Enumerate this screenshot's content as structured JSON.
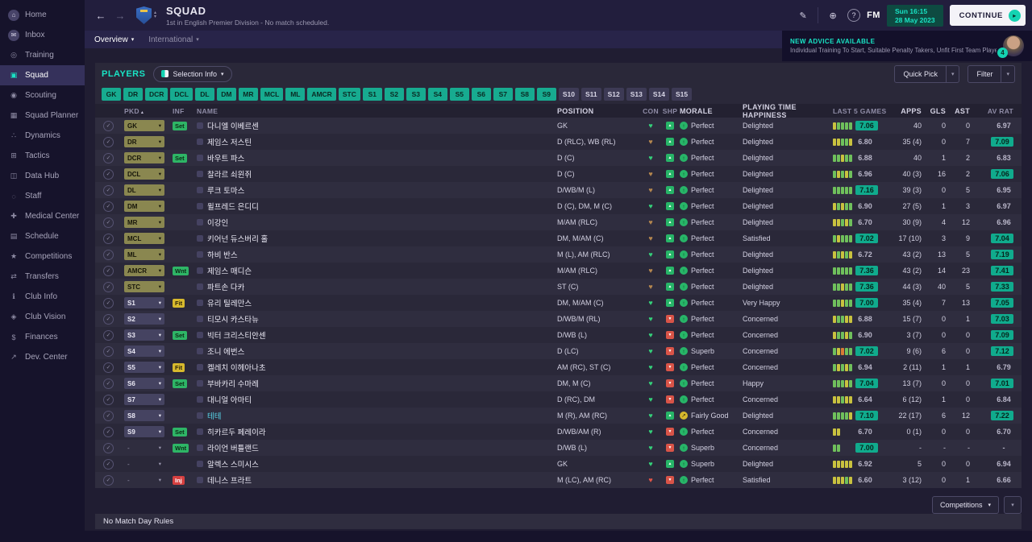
{
  "sidebar": {
    "active_index": 3,
    "items": [
      {
        "id": "home",
        "label": "Home"
      },
      {
        "id": "inbox",
        "label": "Inbox"
      },
      {
        "id": "training",
        "label": "Training"
      },
      {
        "id": "squad",
        "label": "Squad"
      },
      {
        "id": "scouting",
        "label": "Scouting"
      },
      {
        "id": "squad-planner",
        "label": "Squad Planner"
      },
      {
        "id": "dynamics",
        "label": "Dynamics"
      },
      {
        "id": "tactics",
        "label": "Tactics"
      },
      {
        "id": "data-hub",
        "label": "Data Hub"
      },
      {
        "id": "staff",
        "label": "Staff"
      },
      {
        "id": "medical-center",
        "label": "Medical Center"
      },
      {
        "id": "schedule",
        "label": "Schedule"
      },
      {
        "id": "competitions",
        "label": "Competitions"
      },
      {
        "id": "transfers",
        "label": "Transfers"
      },
      {
        "id": "club-info",
        "label": "Club Info"
      },
      {
        "id": "club-vision",
        "label": "Club Vision"
      },
      {
        "id": "finances",
        "label": "Finances"
      },
      {
        "id": "dev-center",
        "label": "Dev. Center"
      }
    ]
  },
  "header": {
    "title": "SQUAD",
    "subtitle": "1st in English Premier Division - No match scheduled.",
    "fm_logo": "FM",
    "date_line1": "Sun 16:15",
    "date_line2": "28 May 2023",
    "continue_label": "CONTINUE"
  },
  "tabs": [
    {
      "label": "Overview"
    },
    {
      "label": "International"
    }
  ],
  "advice": {
    "title": "NEW ADVICE AVAILABLE",
    "body": "Individual Training To Start, Suitable Penalty Takers, Unfit First Team Players",
    "badge": "4"
  },
  "players_bar": {
    "title": "PLAYERS",
    "selection_info": "Selection Info",
    "quick_pick": "Quick Pick",
    "filter": "Filter"
  },
  "position_filters": {
    "selected": [
      "GK",
      "DR",
      "DCR",
      "DCL",
      "DL",
      "DM",
      "MR",
      "MCL",
      "ML",
      "AMCR",
      "STC",
      "S1",
      "S2",
      "S3",
      "S4",
      "S5",
      "S6",
      "S7",
      "S8",
      "S9"
    ],
    "unselected": [
      "S10",
      "S11",
      "S12",
      "S13",
      "S14",
      "S15"
    ]
  },
  "table": {
    "columns": [
      "PKD",
      "INF",
      "NAME",
      "POSITION",
      "CON",
      "SHP",
      "MORALE",
      "PLAYING TIME HAPPINESS",
      "LAST 5 GAMES",
      "APPS",
      "GLS",
      "AST",
      "AV RAT"
    ],
    "rows": [
      {
        "pkd": "GK",
        "sel": "starter",
        "inf": {
          "label": "Set",
          "type": "ok"
        },
        "name": "다니엘 이베르센",
        "loan": false,
        "position": "GK",
        "con": "green",
        "shp": "up",
        "morale": {
          "level": "good",
          "text": "Perfect"
        },
        "happiness": "Delighted",
        "last5": {
          "bars": [
            "y",
            "g",
            "g",
            "g",
            "g"
          ],
          "rating": "7.06",
          "badge": true
        },
        "apps": "40",
        "gls": "0",
        "ast": "0",
        "avrat": "6.97",
        "avrat_badge": false
      },
      {
        "pkd": "DR",
        "sel": "starter",
        "inf": null,
        "name": "제임스 저스틴",
        "loan": false,
        "position": "D (RLC), WB (RL)",
        "con": "bronze",
        "shp": "up",
        "morale": {
          "level": "good",
          "text": "Perfect"
        },
        "happiness": "Delighted",
        "last5": {
          "bars": [
            "y",
            "y",
            "g",
            "g",
            "y"
          ],
          "rating": "6.80",
          "badge": false
        },
        "apps": "35 (4)",
        "gls": "0",
        "ast": "7",
        "avrat": "7.09",
        "avrat_badge": true
      },
      {
        "pkd": "DCR",
        "sel": "starter",
        "inf": {
          "label": "Set",
          "type": "ok"
        },
        "name": "바우트 파스",
        "loan": false,
        "position": "D (C)",
        "con": "green",
        "shp": "up",
        "morale": {
          "level": "good",
          "text": "Perfect"
        },
        "happiness": "Delighted",
        "last5": {
          "bars": [
            "g",
            "g",
            "y",
            "g",
            "g"
          ],
          "rating": "6.88",
          "badge": false
        },
        "apps": "40",
        "gls": "1",
        "ast": "2",
        "avrat": "6.83",
        "avrat_badge": false
      },
      {
        "pkd": "DCL",
        "sel": "starter",
        "inf": null,
        "name": "찰라르 쇠윈쥐",
        "loan": false,
        "position": "D (C)",
        "con": "bronze",
        "shp": "up",
        "morale": {
          "level": "good",
          "text": "Perfect"
        },
        "happiness": "Delighted",
        "last5": {
          "bars": [
            "g",
            "y",
            "g",
            "y",
            "g"
          ],
          "rating": "6.96",
          "badge": false
        },
        "apps": "40 (3)",
        "gls": "16",
        "ast": "2",
        "avrat": "7.06",
        "avrat_badge": true
      },
      {
        "pkd": "DL",
        "sel": "starter",
        "inf": null,
        "name": "루크 토마스",
        "loan": false,
        "position": "D/WB/M (L)",
        "con": "bronze",
        "shp": "up",
        "morale": {
          "level": "good",
          "text": "Perfect"
        },
        "happiness": "Delighted",
        "last5": {
          "bars": [
            "g",
            "g",
            "g",
            "g",
            "g"
          ],
          "rating": "7.16",
          "badge": true
        },
        "apps": "39 (3)",
        "gls": "0",
        "ast": "5",
        "avrat": "6.95",
        "avrat_badge": false
      },
      {
        "pkd": "DM",
        "sel": "starter",
        "inf": null,
        "name": "윌프레드 은디디",
        "loan": false,
        "position": "D (C), DM, M (C)",
        "con": "green",
        "shp": "up",
        "morale": {
          "level": "good",
          "text": "Perfect"
        },
        "happiness": "Delighted",
        "last5": {
          "bars": [
            "y",
            "g",
            "y",
            "g",
            "g"
          ],
          "rating": "6.90",
          "badge": false
        },
        "apps": "27 (5)",
        "gls": "1",
        "ast": "3",
        "avrat": "6.97",
        "avrat_badge": false
      },
      {
        "pkd": "MR",
        "sel": "starter",
        "inf": null,
        "name": "이강인",
        "loan": false,
        "position": "M/AM (RLC)",
        "con": "bronze",
        "shp": "up",
        "morale": {
          "level": "good",
          "text": "Perfect"
        },
        "happiness": "Delighted",
        "last5": {
          "bars": [
            "y",
            "y",
            "g",
            "y",
            "g"
          ],
          "rating": "6.70",
          "badge": false
        },
        "apps": "30 (9)",
        "gls": "4",
        "ast": "12",
        "avrat": "6.96",
        "avrat_badge": false
      },
      {
        "pkd": "MCL",
        "sel": "starter",
        "inf": null,
        "name": "키어넌 듀스버리 홀",
        "loan": false,
        "position": "DM, M/AM (C)",
        "con": "bronze",
        "shp": "up",
        "morale": {
          "level": "good",
          "text": "Perfect"
        },
        "happiness": "Satisfied",
        "last5": {
          "bars": [
            "g",
            "y",
            "g",
            "g",
            "g"
          ],
          "rating": "7.02",
          "badge": true
        },
        "apps": "17 (10)",
        "gls": "3",
        "ast": "9",
        "avrat": "7.04",
        "avrat_badge": true
      },
      {
        "pkd": "ML",
        "sel": "starter",
        "inf": null,
        "name": "하비 반스",
        "loan": false,
        "position": "M (L), AM (RLC)",
        "con": "green",
        "shp": "up",
        "morale": {
          "level": "good",
          "text": "Perfect"
        },
        "happiness": "Delighted",
        "last5": {
          "bars": [
            "y",
            "g",
            "y",
            "g",
            "y"
          ],
          "rating": "6.72",
          "badge": false
        },
        "apps": "43 (2)",
        "gls": "13",
        "ast": "5",
        "avrat": "7.19",
        "avrat_badge": true
      },
      {
        "pkd": "AMCR",
        "sel": "starter",
        "inf": {
          "label": "Wnt",
          "type": "ok"
        },
        "name": "제임스 매디슨",
        "loan": false,
        "position": "M/AM (RLC)",
        "con": "bronze",
        "shp": "up",
        "morale": {
          "level": "good",
          "text": "Perfect"
        },
        "happiness": "Delighted",
        "last5": {
          "bars": [
            "g",
            "g",
            "g",
            "g",
            "g"
          ],
          "rating": "7.36",
          "badge": true
        },
        "apps": "43 (2)",
        "gls": "14",
        "ast": "23",
        "avrat": "7.41",
        "avrat_badge": true
      },
      {
        "pkd": "STC",
        "sel": "starter",
        "inf": null,
        "name": "파트손 다카",
        "loan": false,
        "position": "ST (C)",
        "con": "bronze",
        "shp": "up",
        "morale": {
          "level": "good",
          "text": "Perfect"
        },
        "happiness": "Delighted",
        "last5": {
          "bars": [
            "g",
            "g",
            "y",
            "g",
            "g"
          ],
          "rating": "7.36",
          "badge": true
        },
        "apps": "44 (3)",
        "gls": "40",
        "ast": "5",
        "avrat": "7.33",
        "avrat_badge": true
      },
      {
        "pkd": "S1",
        "sel": "sub",
        "inf": {
          "label": "Fit",
          "type": "warn"
        },
        "name": "유리 틸레만스",
        "loan": false,
        "position": "DM, M/AM (C)",
        "con": "green",
        "shp": "up",
        "morale": {
          "level": "good",
          "text": "Perfect"
        },
        "happiness": "Very Happy",
        "last5": {
          "bars": [
            "g",
            "g",
            "y",
            "g",
            "g"
          ],
          "rating": "7.00",
          "badge": true
        },
        "apps": "35 (4)",
        "gls": "7",
        "ast": "13",
        "avrat": "7.05",
        "avrat_badge": true
      },
      {
        "pkd": "S2",
        "sel": "sub",
        "inf": null,
        "name": "티모시 카스타뉴",
        "loan": false,
        "position": "D/WB/M (RL)",
        "con": "green",
        "shp": "down",
        "morale": {
          "level": "good",
          "text": "Perfect"
        },
        "happiness": "Concerned",
        "last5": {
          "bars": [
            "y",
            "g",
            "g",
            "y",
            "y"
          ],
          "rating": "6.88",
          "badge": false
        },
        "apps": "15 (7)",
        "gls": "0",
        "ast": "1",
        "avrat": "7.03",
        "avrat_badge": true
      },
      {
        "pkd": "S3",
        "sel": "sub",
        "inf": {
          "label": "Set",
          "type": "ok"
        },
        "name": "빅터 크리스티안센",
        "loan": false,
        "position": "D/WB (L)",
        "con": "green",
        "shp": "down",
        "morale": {
          "level": "good",
          "text": "Perfect"
        },
        "happiness": "Concerned",
        "last5": {
          "bars": [
            "y",
            "g",
            "g",
            "y",
            "g"
          ],
          "rating": "6.90",
          "badge": false
        },
        "apps": "3 (7)",
        "gls": "0",
        "ast": "0",
        "avrat": "7.09",
        "avrat_badge": true
      },
      {
        "pkd": "S4",
        "sel": "sub",
        "inf": null,
        "name": "조니 에번스",
        "loan": false,
        "position": "D (LC)",
        "con": "green",
        "shp": "down",
        "morale": {
          "level": "good",
          "text": "Superb"
        },
        "happiness": "Concerned",
        "last5": {
          "bars": [
            "g",
            "y",
            "o",
            "g",
            "g"
          ],
          "rating": "7.02",
          "badge": true
        },
        "apps": "9 (6)",
        "gls": "6",
        "ast": "0",
        "avrat": "7.12",
        "avrat_badge": true
      },
      {
        "pkd": "S5",
        "sel": "sub",
        "inf": {
          "label": "Fit",
          "type": "warn"
        },
        "name": "켈레치 이헤아나초",
        "loan": false,
        "position": "AM (RC), ST (C)",
        "con": "green",
        "shp": "down",
        "morale": {
          "level": "good",
          "text": "Perfect"
        },
        "happiness": "Concerned",
        "last5": {
          "bars": [
            "g",
            "y",
            "g",
            "y",
            "g"
          ],
          "rating": "6.94",
          "badge": false
        },
        "apps": "2 (11)",
        "gls": "1",
        "ast": "1",
        "avrat": "6.79",
        "avrat_badge": false
      },
      {
        "pkd": "S6",
        "sel": "sub",
        "inf": {
          "label": "Set",
          "type": "ok"
        },
        "name": "부바카리 수마레",
        "loan": false,
        "position": "DM, M (C)",
        "con": "green",
        "shp": "down",
        "morale": {
          "level": "good",
          "text": "Perfect"
        },
        "happiness": "Happy",
        "last5": {
          "bars": [
            "g",
            "g",
            "g",
            "y",
            "g"
          ],
          "rating": "7.04",
          "badge": true
        },
        "apps": "13 (7)",
        "gls": "0",
        "ast": "0",
        "avrat": "7.01",
        "avrat_badge": true
      },
      {
        "pkd": "S7",
        "sel": "sub",
        "inf": null,
        "name": "대니얼 아마티",
        "loan": false,
        "position": "D (RC), DM",
        "con": "green",
        "shp": "down",
        "morale": {
          "level": "good",
          "text": "Perfect"
        },
        "happiness": "Concerned",
        "last5": {
          "bars": [
            "y",
            "y",
            "g",
            "y",
            "y"
          ],
          "rating": "6.64",
          "badge": false
        },
        "apps": "6 (12)",
        "gls": "1",
        "ast": "0",
        "avrat": "6.84",
        "avrat_badge": false
      },
      {
        "pkd": "S8",
        "sel": "sub",
        "inf": null,
        "name": "테테",
        "loan": true,
        "position": "M (R), AM (RC)",
        "con": "green",
        "shp": "up",
        "morale": {
          "level": "mid",
          "text": "Fairly Good"
        },
        "happiness": "Delighted",
        "last5": {
          "bars": [
            "g",
            "g",
            "g",
            "g",
            "y"
          ],
          "rating": "7.10",
          "badge": true
        },
        "apps": "22 (17)",
        "gls": "6",
        "ast": "12",
        "avrat": "7.22",
        "avrat_badge": true
      },
      {
        "pkd": "S9",
        "sel": "sub",
        "inf": {
          "label": "Set",
          "type": "ok"
        },
        "name": "히카르두 페레이라",
        "loan": false,
        "position": "D/WB/AM (R)",
        "con": "green",
        "shp": "down",
        "morale": {
          "level": "good",
          "text": "Perfect"
        },
        "happiness": "Concerned",
        "last5": {
          "bars": [
            "y",
            "y",
            "e",
            "e",
            "e"
          ],
          "rating": "6.70",
          "badge": false
        },
        "apps": "0 (1)",
        "gls": "0",
        "ast": "0",
        "avrat": "6.70",
        "avrat_badge": false
      },
      {
        "pkd": "-",
        "sel": "none",
        "inf": {
          "label": "Wnt",
          "type": "ok"
        },
        "name": "라이언 버틀랜드",
        "loan": false,
        "position": "D/WB (L)",
        "con": "green",
        "shp": "down",
        "morale": {
          "level": "good",
          "text": "Superb"
        },
        "happiness": "Concerned",
        "last5": {
          "bars": [
            "g",
            "g",
            "e",
            "e",
            "e"
          ],
          "rating": "7.00",
          "badge": true
        },
        "apps": "-",
        "gls": "-",
        "ast": "-",
        "avrat": "-",
        "avrat_badge": false
      },
      {
        "pkd": "-",
        "sel": "none",
        "inf": null,
        "name": "알렉스 스미시스",
        "loan": false,
        "position": "GK",
        "con": "green",
        "shp": "up",
        "morale": {
          "level": "good",
          "text": "Superb"
        },
        "happiness": "Delighted",
        "last5": {
          "bars": [
            "y",
            "y",
            "y",
            "y",
            "y"
          ],
          "rating": "6.92",
          "badge": false
        },
        "apps": "5",
        "gls": "0",
        "ast": "0",
        "avrat": "6.94",
        "avrat_badge": false
      },
      {
        "pkd": "-",
        "sel": "none",
        "inf": {
          "label": "Inj",
          "type": "bad"
        },
        "name": "데니스 프라트",
        "loan": false,
        "position": "M (LC), AM (RC)",
        "con": "red",
        "shp": "down",
        "morale": {
          "level": "good",
          "text": "Perfect"
        },
        "happiness": "Satisfied",
        "last5": {
          "bars": [
            "y",
            "y",
            "y",
            "g",
            "y"
          ],
          "rating": "6.60",
          "badge": false
        },
        "apps": "3 (12)",
        "gls": "0",
        "ast": "1",
        "avrat": "6.66",
        "avrat_badge": false
      }
    ]
  },
  "footer": {
    "competitions": "Competitions",
    "no_match_day_rules": "No Match Day Rules"
  }
}
